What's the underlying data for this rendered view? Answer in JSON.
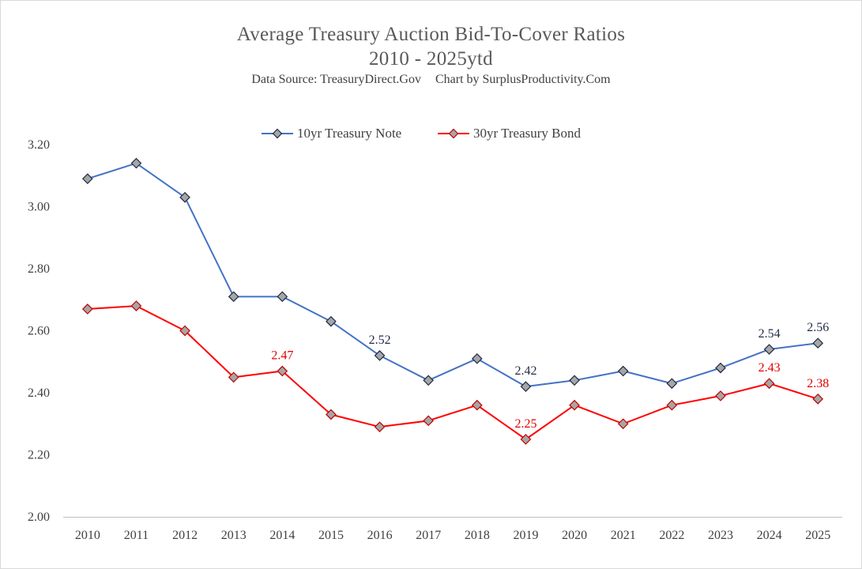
{
  "chart_data": {
    "type": "line",
    "title": "Average Treasury Auction Bid-To-Cover Ratios",
    "subtitle": "2010 - 2025ytd",
    "source_note": "Data Source: TreasuryDirect.Gov",
    "credit_note": "Chart by SurplusProductivity.Com",
    "categories": [
      "2010",
      "2011",
      "2012",
      "2013",
      "2014",
      "2015",
      "2016",
      "2017",
      "2018",
      "2019",
      "2020",
      "2021",
      "2022",
      "2023",
      "2024",
      "2025"
    ],
    "ylim": [
      2.0,
      3.2
    ],
    "yticks": [
      "2.00",
      "2.20",
      "2.40",
      "2.60",
      "2.80",
      "3.00",
      "3.20"
    ],
    "legend_position": "top-center",
    "series": [
      {
        "name": "10yr Treasury Note",
        "color": "#4472c4",
        "label_color": "#1f2a44",
        "values": [
          3.09,
          3.14,
          3.03,
          2.71,
          2.71,
          2.63,
          2.52,
          2.44,
          2.51,
          2.42,
          2.44,
          2.47,
          2.43,
          2.48,
          2.54,
          2.56
        ],
        "data_labels": [
          {
            "index": 6,
            "text": "2.52"
          },
          {
            "index": 9,
            "text": "2.42"
          },
          {
            "index": 14,
            "text": "2.54"
          },
          {
            "index": 15,
            "text": "2.56"
          }
        ]
      },
      {
        "name": "30yr Treasury Bond",
        "color": "#ff0000",
        "label_color": "#e00000",
        "values": [
          2.67,
          2.68,
          2.6,
          2.45,
          2.47,
          2.33,
          2.29,
          2.31,
          2.36,
          2.25,
          2.36,
          2.3,
          2.36,
          2.39,
          2.43,
          2.38
        ],
        "data_labels": [
          {
            "index": 4,
            "text": "2.47"
          },
          {
            "index": 9,
            "text": "2.25"
          },
          {
            "index": 14,
            "text": "2.43"
          },
          {
            "index": 15,
            "text": "2.38"
          }
        ]
      }
    ],
    "marker_fill": "#a6a6a6",
    "marker_shape": "diamond"
  }
}
